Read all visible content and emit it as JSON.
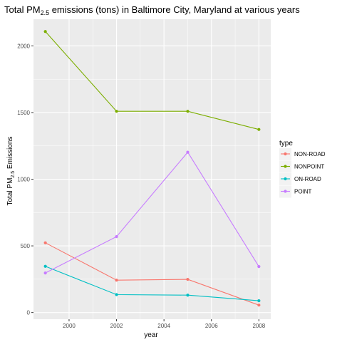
{
  "chart_data": {
    "type": "line",
    "title": {
      "prefix": "Total PM",
      "subscript": "2.5",
      "suffix": " emissions (tons) in Baltimore City, Maryland at various years"
    },
    "xlabel": "year",
    "ylabel": {
      "prefix": "Total PM",
      "subscript": "2.5",
      "suffix": " Emissions"
    },
    "x": [
      1999,
      2002,
      2005,
      2008
    ],
    "xlim": [
      1998.5,
      2008.5
    ],
    "ylim": [
      -50,
      2200
    ],
    "x_ticks": [
      2000,
      2002,
      2004,
      2006,
      2008
    ],
    "x_tick_labels": [
      "2000",
      "2002",
      "2004",
      "2006",
      "2008"
    ],
    "y_ticks": [
      0,
      500,
      1000,
      1500,
      2000
    ],
    "y_tick_labels": [
      "0",
      "500",
      "1000",
      "1500",
      "2000"
    ],
    "grid": true,
    "legend_title": "type",
    "legend_position": "right",
    "series": [
      {
        "name": "NON-ROAD",
        "color": "#F8766D",
        "values": [
          522.94,
          242.85,
          248.93,
          55.82
        ]
      },
      {
        "name": "NONPOINT",
        "color": "#7CAE00",
        "values": [
          2107.63,
          1509.5,
          1509.5,
          1373.21
        ]
      },
      {
        "name": "ON-ROAD",
        "color": "#00BFC4",
        "values": [
          346.82,
          134.31,
          130.43,
          88.28
        ]
      },
      {
        "name": "POINT",
        "color": "#C77CFF",
        "values": [
          296.8,
          569.26,
          1202.49,
          344.98
        ]
      }
    ]
  }
}
